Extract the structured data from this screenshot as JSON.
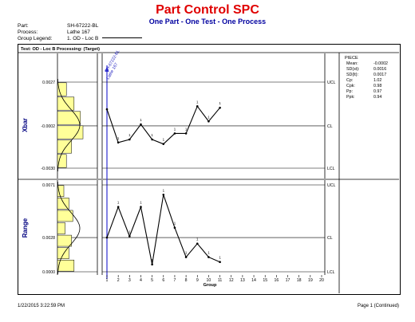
{
  "header": {
    "title": "Part Control SPC",
    "subtitle": "One Part - One Test - One Process",
    "fields": [
      {
        "label": "Part:",
        "value": "SH-67222-BL"
      },
      {
        "label": "Process:",
        "value": "Lathe 167"
      },
      {
        "label": "Group Legend:",
        "value": "1. OD - Loc B"
      }
    ]
  },
  "chart_header": "Test:  OD - Loc B    Processing:  (Target)",
  "stats": {
    "title": "PIECE",
    "rows": [
      {
        "label": "Mean:",
        "value": "-0.0002"
      },
      {
        "label": "SD(st):",
        "value": "0.0016"
      },
      {
        "label": "SD(lt):",
        "value": "0.0017"
      },
      {
        "label": "Cp:",
        "value": "1.02"
      },
      {
        "label": "Cpk:",
        "value": "0.98"
      },
      {
        "label": "Pp:",
        "value": "0.97"
      },
      {
        "label": "Ppk:",
        "value": "0.94"
      }
    ]
  },
  "footer": {
    "timestamp": "1/22/2015  3:22:59 PM",
    "page": "Page 1 (Continued)"
  },
  "chart_data": [
    {
      "type": "line",
      "ylabel": "Xbar",
      "ylim": [
        -0.003,
        0.0027
      ],
      "x": [
        1,
        2,
        3,
        4,
        5,
        6,
        7,
        8,
        9,
        10,
        11
      ],
      "values": [
        0.0009,
        -0.0013,
        -0.0011,
        -0.0001,
        -0.0011,
        -0.0014,
        -0.0007,
        -0.0007,
        0.0011,
        0.0001,
        0.001
      ],
      "limits": [
        {
          "name": "UCL",
          "value": 0.0027,
          "tick": "0.0027"
        },
        {
          "name": "CL",
          "value": -0.0002,
          "tick": "-0.0002"
        },
        {
          "name": "LCL",
          "value": -0.003,
          "tick": "-0.0030"
        }
      ],
      "point_marks": [
        "",
        "1",
        "1",
        "1",
        "1",
        "1",
        "1",
        "1",
        "1",
        "1",
        "1"
      ],
      "histogram": [
        0.35,
        0.65,
        0.9,
        1.0,
        0.55,
        0.35
      ],
      "annotations": [
        "SH-67222-BL",
        "Lathe 167"
      ]
    },
    {
      "type": "line",
      "ylabel": "Range",
      "ylim": [
        0.0,
        0.0071
      ],
      "x": [
        1,
        2,
        3,
        4,
        5,
        6,
        7,
        8,
        9,
        10,
        11
      ],
      "values": [
        0.0028,
        0.0053,
        0.0029,
        0.0053,
        0.0006,
        0.0063,
        0.0036,
        0.0012,
        0.0023,
        0.0012,
        0.0008
      ],
      "limits": [
        {
          "name": "UCL",
          "value": 0.0071,
          "tick": "0.0071"
        },
        {
          "name": "CL",
          "value": 0.0028,
          "tick": "0.0028"
        },
        {
          "name": "LCL",
          "value": 0.0,
          "tick": "0.0000"
        }
      ],
      "point_marks": [
        "",
        "1",
        "1",
        "1",
        "1",
        "1",
        "1",
        "1",
        "1",
        "1",
        "1"
      ],
      "histogram": [
        0.25,
        0.45,
        0.6,
        0.3,
        0.55,
        0.45,
        0.65
      ],
      "xlabel": "Group",
      "xticks": [
        1,
        2,
        3,
        4,
        5,
        6,
        7,
        8,
        9,
        10,
        11,
        12,
        13,
        14,
        15,
        16,
        17,
        18,
        19,
        20
      ],
      "grid": false
    }
  ]
}
